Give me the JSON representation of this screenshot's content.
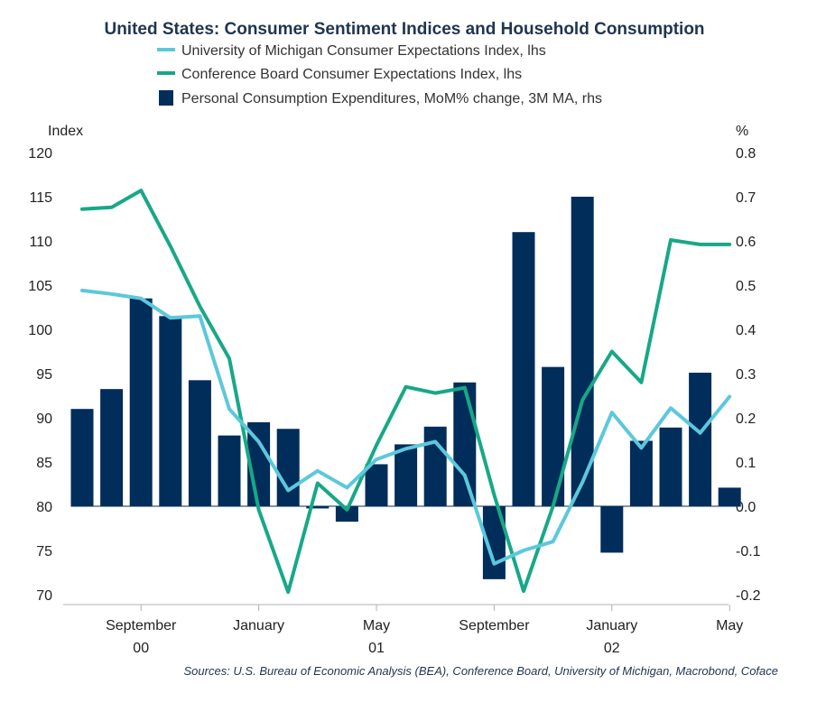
{
  "chart_data": {
    "type": "bar+line",
    "title": "United States: Consumer Sentiment Indices and Household Consumption",
    "source": "Sources: U.S. Bureau of Economic Analysis (BEA), Conference Board, University of Michigan, Macrobond, Coface",
    "left_axis": {
      "unit": "Index",
      "ylim": [
        70,
        120
      ],
      "ticks": [
        "120",
        "115",
        "110",
        "105",
        "100",
        "95",
        "90",
        "85",
        "80",
        "75",
        "70"
      ]
    },
    "right_axis": {
      "unit": "%",
      "ylim": [
        -0.2,
        0.8
      ],
      "ticks": [
        "0.8",
        "0.7",
        "0.6",
        "0.5",
        "0.4",
        "0.3",
        "0.2",
        "0.1",
        "0.0",
        "-0.1",
        "-0.2"
      ]
    },
    "x_month_labels": [
      {
        "label": "September",
        "index": 2
      },
      {
        "label": "January",
        "index": 6
      },
      {
        "label": "May",
        "index": 10
      },
      {
        "label": "September",
        "index": 14
      },
      {
        "label": "January",
        "index": 18
      },
      {
        "label": "May",
        "index": 22
      }
    ],
    "x_year_labels": [
      {
        "label": "00",
        "index": 2
      },
      {
        "label": "01",
        "index": 10
      },
      {
        "label": "02",
        "index": 18
      }
    ],
    "year_boundaries": [
      2,
      6,
      18,
      22
    ],
    "series": [
      {
        "name": "University of Michigan Consumer Expectations Index, lhs",
        "type": "line",
        "axis": "left",
        "color": "#5cc8dc",
        "values": [
          104.4,
          104.0,
          103.5,
          101.3,
          101.5,
          91.0,
          87.3,
          81.8,
          84.0,
          82.1,
          85.3,
          86.5,
          87.3,
          83.5,
          73.5,
          75.0,
          76.0,
          82.7,
          90.6,
          86.6,
          91.1,
          88.3,
          92.4
        ]
      },
      {
        "name": "Conference Board Consumer Expectations Index, lhs",
        "type": "line",
        "axis": "left",
        "color": "#17a887",
        "values": [
          113.6,
          113.8,
          115.7,
          109.4,
          102.6,
          96.7,
          79.6,
          70.3,
          82.6,
          79.6,
          86.9,
          93.5,
          92.8,
          93.4,
          81.3,
          70.4,
          80.0,
          92.0,
          97.5,
          94.0,
          110.1,
          109.6,
          109.6
        ]
      },
      {
        "name": "Personal Consumption Expenditures, MoM% change, 3M MA, rhs",
        "type": "bar",
        "axis": "right",
        "color": "#002d5a",
        "values": [
          0.22,
          0.265,
          0.47,
          0.43,
          0.285,
          0.16,
          0.19,
          0.175,
          -0.005,
          -0.035,
          0.095,
          0.14,
          0.18,
          0.28,
          -0.165,
          0.62,
          0.315,
          0.7,
          -0.105,
          0.148,
          0.178,
          0.302,
          0.042
        ]
      }
    ]
  }
}
